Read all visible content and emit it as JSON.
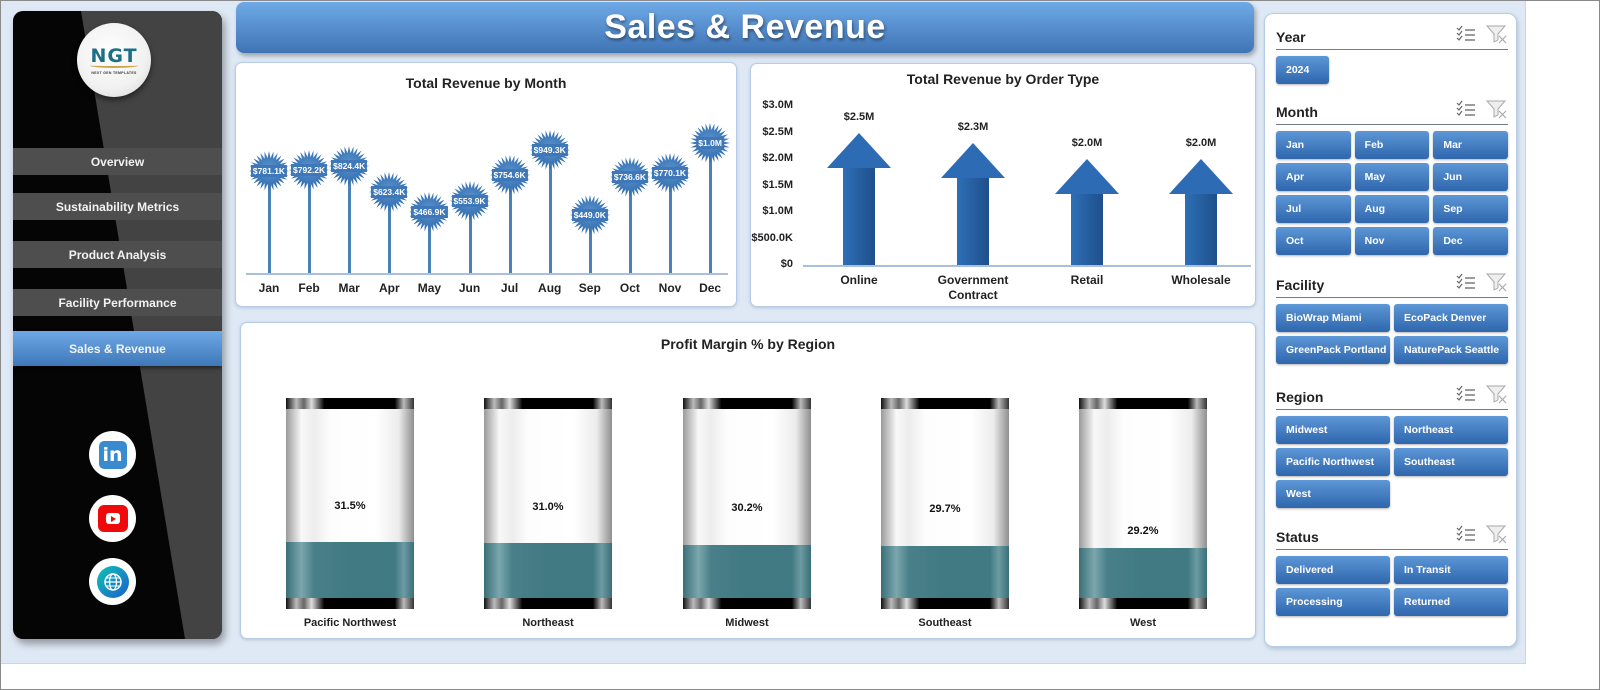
{
  "header": {
    "title": "Sales & Revenue"
  },
  "sidebar": {
    "logo": {
      "text": "NGT",
      "tagline": "NEXT GEN TEMPLATES"
    },
    "items": [
      {
        "label": "Overview",
        "active": false
      },
      {
        "label": "Sustainability Metrics",
        "active": false
      },
      {
        "label": "Product Analysis",
        "active": false
      },
      {
        "label": "Facility Performance",
        "active": false
      },
      {
        "label": "Sales & Revenue",
        "active": true
      }
    ],
    "social": [
      {
        "name": "linkedin-icon",
        "glyph": "in"
      },
      {
        "name": "youtube-icon",
        "glyph": ""
      },
      {
        "name": "website-globe-icon",
        "glyph": ""
      }
    ]
  },
  "charts": {
    "revenue_by_month": {
      "title": "Total Revenue  by Month",
      "labels": [
        "$781.1K",
        "$792.2K",
        "$824.4K",
        "$623.4K",
        "$466.9K",
        "$553.9K",
        "$754.6K",
        "$949.3K",
        "$449.0K",
        "$736.6K",
        "$770.1K",
        "$1.0M"
      ],
      "months": [
        "Jan",
        "Feb",
        "Mar",
        "Apr",
        "May",
        "Jun",
        "Jul",
        "Aug",
        "Sep",
        "Oct",
        "Nov",
        "Dec"
      ]
    },
    "revenue_by_order_type": {
      "title": "Total Revenue  by Order Type",
      "yticks": [
        "$3.0M",
        "$2.5M",
        "$2.0M",
        "$1.5M",
        "$1.0M",
        "$500.0K",
        "$0"
      ],
      "categories": [
        "Online",
        "Government Contract",
        "Retail",
        "Wholesale"
      ],
      "labels": [
        "$2.5M",
        "$2.3M",
        "$2.0M",
        "$2.0M"
      ]
    },
    "profit_margin_by_region": {
      "title": "Profit Margin % by Region",
      "regions": [
        "Pacific Northwest",
        "Northeast",
        "Midwest",
        "Southeast",
        "West"
      ],
      "labels": [
        "31.5%",
        "31.0%",
        "30.2%",
        "29.7%",
        "29.2%"
      ]
    }
  },
  "chart_data": [
    {
      "type": "line",
      "title": "Total Revenue by Month",
      "categories": [
        "Jan",
        "Feb",
        "Mar",
        "Apr",
        "May",
        "Jun",
        "Jul",
        "Aug",
        "Sep",
        "Oct",
        "Nov",
        "Dec"
      ],
      "values": [
        781.1,
        792.2,
        824.4,
        623.4,
        466.9,
        553.9,
        754.6,
        949.3,
        449.0,
        736.6,
        770.1,
        1000.0
      ],
      "units": "$K",
      "xlabel": "",
      "ylabel": "",
      "grid": false
    },
    {
      "type": "bar",
      "title": "Total Revenue by Order Type",
      "categories": [
        "Online",
        "Government Contract",
        "Retail",
        "Wholesale"
      ],
      "values": [
        2.5,
        2.3,
        2.0,
        2.0
      ],
      "units": "$M",
      "ylim": [
        0,
        3.0
      ],
      "yticks": [
        "$0",
        "$500.0K",
        "$1.0M",
        "$1.5M",
        "$2.0M",
        "$2.5M",
        "$3.0M"
      ]
    },
    {
      "type": "bar",
      "title": "Profit Margin % by Region",
      "categories": [
        "Pacific Northwest",
        "Northeast",
        "Midwest",
        "Southeast",
        "West"
      ],
      "values": [
        31.5,
        31.0,
        30.2,
        29.7,
        29.2
      ],
      "units": "%"
    }
  ],
  "slicers": [
    {
      "title": "Year",
      "columns": 1,
      "items": [
        "2024"
      ]
    },
    {
      "title": "Month",
      "columns": 3,
      "items": [
        "Jan",
        "Feb",
        "Mar",
        "Apr",
        "May",
        "Jun",
        "Jul",
        "Aug",
        "Sep",
        "Oct",
        "Nov",
        "Dec"
      ]
    },
    {
      "title": "Facility",
      "columns": 2,
      "items": [
        "BioWrap Miami",
        "EcoPack Denver",
        "GreenPack Portland",
        "NaturePack Seattle"
      ]
    },
    {
      "title": "Region",
      "columns": 2,
      "items": [
        "Midwest",
        "Northeast",
        "Pacific Northwest",
        "Southeast",
        "West"
      ]
    },
    {
      "title": "Status",
      "columns": 2,
      "items": [
        "Delivered",
        "In Transit",
        "Processing",
        "Returned"
      ]
    }
  ],
  "colors": {
    "accent": "#3f78b8",
    "teal_fill": "#417a83",
    "header_top": "#6eaae6",
    "header_bottom": "#3f74b4"
  }
}
